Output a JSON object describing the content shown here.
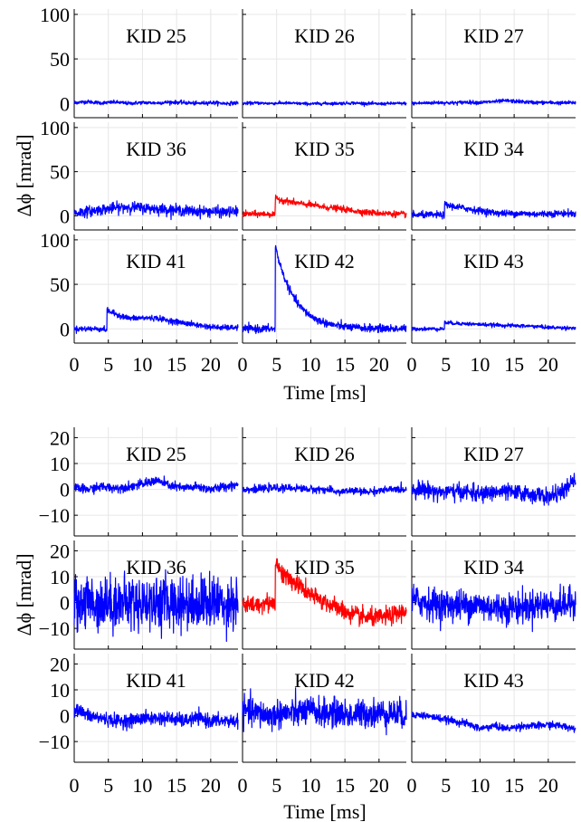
{
  "chart_data": [
    {
      "type": "line",
      "xlabel": "Time [ms]",
      "ylabel": "Δϕ [mrad]",
      "xlim": [
        0,
        24
      ],
      "ylim": [
        -16,
        106
      ],
      "xticks": [
        0,
        5,
        10,
        15,
        20
      ],
      "yticks": [
        0,
        50,
        100
      ],
      "grid": true,
      "panels": [
        {
          "label": "KID 25",
          "color": "#0000ff",
          "noise": 1.2,
          "pulse": {
            "t0": 0,
            "amp": 0,
            "tau": 1
          },
          "wander": [
            1.0,
            2.0,
            0.5,
            1.5,
            0.0,
            1.0,
            0.5,
            1.5,
            1.0,
            0.0,
            1.0,
            0.0,
            0.5
          ]
        },
        {
          "label": "KID 26",
          "color": "#0000ff",
          "noise": 1.0,
          "pulse": {
            "t0": 0,
            "amp": 0,
            "tau": 1
          },
          "wander": [
            0.0,
            0.5,
            0.0,
            0.5,
            0.0,
            -0.5,
            0.0,
            0.0,
            0.5,
            0.0,
            -0.5,
            0.0,
            0.0
          ]
        },
        {
          "label": "KID 27",
          "color": "#0000ff",
          "noise": 1.2,
          "pulse": {
            "t0": 0,
            "amp": 0,
            "tau": 1
          },
          "wander": [
            0.0,
            0.5,
            1.0,
            0.5,
            1.5,
            1.0,
            2.0,
            3.0,
            2.0,
            1.0,
            1.0,
            0.5,
            1.0
          ]
        },
        {
          "label": "KID 36",
          "color": "#0000ff",
          "noise": 3.5,
          "pulse": {
            "t0": 0,
            "amp": 0,
            "tau": 1
          },
          "wander": [
            3.0,
            5.0,
            7.0,
            9.0,
            10.0,
            9.0,
            8.0,
            7.0,
            6.0,
            5.0,
            5.0,
            4.0,
            5.0
          ]
        },
        {
          "label": "KID 35",
          "color": "#ff0000",
          "noise": 2.0,
          "pulse": {
            "t0": 4.8,
            "amp": 18,
            "tau": 14
          },
          "wander": [
            2.0,
            2.0,
            2.0,
            1.0,
            0.0,
            0.0,
            -1.0,
            -1.0,
            -2.0,
            -3.0,
            -3.0,
            -3.0,
            -3.0
          ]
        },
        {
          "label": "KID 34",
          "color": "#0000ff",
          "noise": 2.2,
          "pulse": {
            "t0": 4.8,
            "amp": 12,
            "tau": 12
          },
          "wander": [
            1.0,
            1.0,
            1.0,
            0.0,
            -1.0,
            -2.0,
            -3.0,
            -3.0,
            -2.0,
            -2.0,
            -1.0,
            0.0,
            0.0
          ]
        },
        {
          "label": "KID 41",
          "color": "#0000ff",
          "noise": 1.8,
          "pulse": {
            "t0": 4.8,
            "amp": 22,
            "tau": 12
          },
          "wander": [
            0.0,
            0.0,
            0.0,
            -3.0,
            -5.0,
            -2.0,
            0.0,
            -1.0,
            -2.0,
            -3.0,
            -4.0,
            -4.0,
            -3.0
          ]
        },
        {
          "label": "KID 42",
          "color": "#0000ff",
          "noise": 2.5,
          "pulse": {
            "t0": 4.8,
            "amp": 93,
            "tau": 2.8
          },
          "wander": [
            0.0,
            0.0,
            0.0,
            0.0,
            0.0,
            0.0,
            0.0,
            0.0,
            0.0,
            0.0,
            0.0,
            0.0,
            0.0
          ]
        },
        {
          "label": "KID 43",
          "color": "#0000ff",
          "noise": 1.2,
          "pulse": {
            "t0": 4.8,
            "amp": 7,
            "tau": 15
          },
          "wander": [
            0.0,
            0.0,
            0.0,
            0.0,
            0.0,
            0.0,
            0.0,
            0.0,
            0.0,
            0.0,
            -1.0,
            -1.0,
            -1.0
          ]
        }
      ]
    },
    {
      "type": "line",
      "xlabel": "Time [ms]",
      "ylabel": "Δϕ [mrad]",
      "xlim": [
        0,
        24
      ],
      "ylim": [
        -18,
        24
      ],
      "xticks": [
        0,
        5,
        10,
        15,
        20
      ],
      "yticks": [
        -10,
        0,
        10,
        20
      ],
      "grid": true,
      "panels": [
        {
          "label": "KID 25",
          "color": "#0000ff",
          "noise": 1.0,
          "pulse": {
            "t0": 0,
            "amp": 0,
            "tau": 1
          },
          "wander": [
            0.5,
            0.0,
            1.0,
            0.5,
            1.0,
            2.0,
            3.5,
            1.5,
            0.5,
            1.0,
            0.0,
            1.0,
            2.0
          ]
        },
        {
          "label": "KID 26",
          "color": "#0000ff",
          "noise": 0.8,
          "pulse": {
            "t0": 0,
            "amp": 0,
            "tau": 1
          },
          "wander": [
            0.0,
            0.0,
            0.5,
            0.5,
            0.5,
            0.0,
            0.0,
            -1.0,
            -0.5,
            -1.0,
            -0.5,
            0.0,
            0.0
          ]
        },
        {
          "label": "KID 27",
          "color": "#0000ff",
          "noise": 1.8,
          "pulse": {
            "t0": 0,
            "amp": 0,
            "tau": 1
          },
          "wander": [
            0.0,
            0.0,
            -1.0,
            -1.0,
            -1.0,
            -2.0,
            -1.0,
            -1.0,
            -1.5,
            -2.0,
            -3.0,
            -1.0,
            3.5
          ]
        },
        {
          "label": "KID 36",
          "color": "#0000ff",
          "noise": 6.0,
          "pulse": {
            "t0": 0,
            "amp": 0,
            "tau": 1
          },
          "wander": [
            0.0,
            0.0,
            0.0,
            0.0,
            0.0,
            0.0,
            0.0,
            0.0,
            0.0,
            0.0,
            0.0,
            0.0,
            0.0
          ]
        },
        {
          "label": "KID 35",
          "color": "#ff0000",
          "noise": 2.0,
          "pulse": {
            "t0": 4.8,
            "amp": 16,
            "tau": 3
          },
          "wander": [
            -1.0,
            -1.0,
            0.0,
            0.0,
            2.0,
            0.0,
            -1.0,
            -3.0,
            -5.0,
            -6.0,
            -6.0,
            -5.0,
            -3.0
          ]
        },
        {
          "label": "KID 34",
          "color": "#0000ff",
          "noise": 3.5,
          "pulse": {
            "t0": 0,
            "amp": 0,
            "tau": 1
          },
          "wander": [
            1.0,
            0.0,
            -1.0,
            -1.0,
            -1.0,
            -1.0,
            -2.0,
            -2.0,
            -2.0,
            -1.0,
            -1.0,
            -1.0,
            0.0
          ]
        },
        {
          "label": "KID 41",
          "color": "#0000ff",
          "noise": 1.5,
          "pulse": {
            "t0": 0,
            "amp": 0,
            "tau": 1
          },
          "wander": [
            3.0,
            0.0,
            -1.0,
            -2.0,
            -2.0,
            -1.0,
            -1.0,
            -1.0,
            -2.0,
            -1.0,
            -2.0,
            -2.0,
            -2.0
          ]
        },
        {
          "label": "KID 42",
          "color": "#0000ff",
          "noise": 3.2,
          "pulse": {
            "t0": 0,
            "amp": 0,
            "tau": 1
          },
          "wander": [
            2.0,
            1.0,
            0.0,
            1.0,
            1.0,
            2.0,
            1.0,
            1.0,
            0.0,
            1.0,
            1.0,
            1.0,
            0.0
          ]
        },
        {
          "label": "KID 43",
          "color": "#0000ff",
          "noise": 0.8,
          "pulse": {
            "t0": 0,
            "amp": 0,
            "tau": 1
          },
          "wander": [
            0.5,
            0.0,
            -1.0,
            -2.0,
            -3.0,
            -5.0,
            -4.0,
            -5.0,
            -4.0,
            -4.0,
            -3.5,
            -4.0,
            -5.0
          ]
        }
      ]
    }
  ]
}
